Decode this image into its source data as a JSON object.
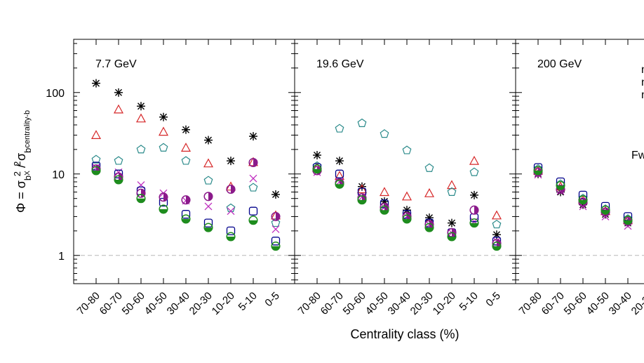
{
  "chart_data": {
    "type": "scatter",
    "y_scale": "log",
    "ylim": [
      0.45,
      450
    ],
    "yticks": [
      {
        "value": 1,
        "label": "1"
      },
      {
        "value": 10,
        "label": "10"
      },
      {
        "value": 100,
        "label": "100"
      }
    ],
    "ylabel": {
      "prefix": "Φ = σ",
      "sub1": "b",
      "sub1b": "X",
      "sup1": "2",
      "mid": " / σ",
      "sub2": "b",
      "sub2b": "centrality-b",
      "sup2": "2"
    },
    "xlabel": "Centrality class (%)",
    "categories": [
      "70-80",
      "60-70",
      "50-60",
      "40-50",
      "30-40",
      "20-30",
      "10-20",
      "5-10",
      "0-5"
    ],
    "reference_line": 1,
    "panels": [
      {
        "title": "7.7 GeV",
        "series": [
          {
            "marker": "asterisk",
            "color": "#000000",
            "values": [
              130,
              100,
              68,
              50,
              35,
              26,
              14.5,
              29,
              5.6
            ]
          },
          {
            "marker": "triangle",
            "color": "#d62728",
            "values": [
              30,
              62,
              48,
              33,
              21,
              13.5,
              7,
              14,
              3.1
            ]
          },
          {
            "marker": "pentagon",
            "color": "#2a8a8a",
            "values": [
              15,
              14.5,
              20,
              21,
              14.5,
              8.3,
              3.8,
              6.8,
              2.5
            ]
          },
          {
            "marker": "x",
            "color": "#c030c0",
            "values": [
              12,
              10.5,
              7.3,
              5.8,
              4.7,
              4,
              3.5,
              8.8,
              2.1
            ]
          },
          {
            "marker": "square",
            "color": "#00008b",
            "values": [
              12.5,
              10,
              6.2,
              4.5,
              3.2,
              2.5,
              2,
              3.5,
              1.5
            ]
          },
          {
            "marker": "circle-half-purple",
            "color": "#8b1a8b",
            "values": [
              11.5,
              9.2,
              5.8,
              5.2,
              4.8,
              5.3,
              6.5,
              13.8,
              3
            ]
          },
          {
            "marker": "circle-half-green",
            "color": "#1e8c1e",
            "values": [
              11,
              8.5,
              5,
              3.7,
              2.8,
              2.2,
              1.7,
              2.7,
              1.3
            ]
          }
        ]
      },
      {
        "title": "19.6 GeV",
        "series": [
          {
            "marker": "asterisk",
            "color": "#000000",
            "values": [
              17,
              14.5,
              7,
              4.6,
              3.6,
              2.9,
              2.5,
              5.5,
              1.8
            ]
          },
          {
            "marker": "triangle",
            "color": "#d62728",
            "values": [
              12,
              9.5,
              6.5,
              6,
              5.3,
              5.8,
              7.3,
              14.5,
              3.1
            ]
          },
          {
            "marker": "pentagon",
            "color": "#2a8a8a",
            "values": [
              12.5,
              36,
              42,
              31,
              19.5,
              11.8,
              6,
              10.5,
              2.4
            ]
          },
          {
            "marker": "x",
            "color": "#c030c0",
            "values": [
              10.5,
              8,
              5.2,
              3.9,
              3,
              2.4,
              1.9,
              2.6,
              1.5
            ]
          },
          {
            "marker": "square",
            "color": "#00008b",
            "values": [
              12,
              10,
              6,
              4.3,
              3.2,
              2.5,
              1.9,
              2.9,
              1.5
            ]
          },
          {
            "marker": "circle-half-purple",
            "color": "#8b1a8b",
            "values": [
              11,
              7.8,
              5.1,
              3.9,
              3,
              2.4,
              1.9,
              3.6,
              1.4
            ]
          },
          {
            "marker": "circle-half-green",
            "color": "#1e8c1e",
            "values": [
              11.5,
              7.5,
              4.8,
              3.6,
              2.8,
              2.2,
              1.7,
              2.5,
              1.3
            ]
          }
        ]
      },
      {
        "title": "200 GeV",
        "series": [
          {
            "marker": "asterisk",
            "color": "#000000",
            "values": [
              10,
              6,
              4.2,
              3.2,
              2.5
            ]
          },
          {
            "marker": "triangle",
            "color": "#d62728",
            "values": [
              11,
              7,
              4.8,
              3.5,
              2.7
            ]
          },
          {
            "marker": "pentagon",
            "color": "#2a8a8a",
            "values": [
              11.5,
              7.5,
              5,
              3.7,
              2.8
            ]
          },
          {
            "marker": "x",
            "color": "#c030c0",
            "values": [
              9.8,
              6.2,
              4,
              3,
              2.3
            ]
          },
          {
            "marker": "square",
            "color": "#00008b",
            "values": [
              12,
              8,
              5.5,
              4,
              3
            ]
          },
          {
            "marker": "circle-half-purple",
            "color": "#8b1a8b",
            "values": [
              10.5,
              6.5,
              4.5,
              3.4,
              2.6
            ]
          },
          {
            "marker": "circle-half-green",
            "color": "#1e8c1e",
            "values": [
              11,
              7.2,
              4.8,
              3.6,
              2.7
            ]
          }
        ]
      }
    ],
    "partial_text": [
      "n",
      "n",
      "n",
      "Fw"
    ]
  }
}
